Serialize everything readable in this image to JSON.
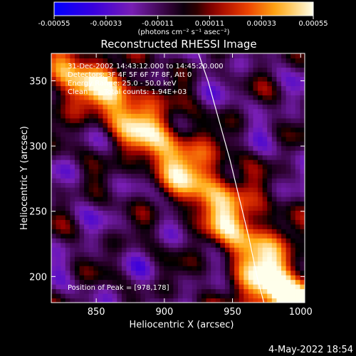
{
  "chart_data": {
    "type": "heatmap",
    "title": "Reconstructed RHESSI Image",
    "xlabel": "Heliocentric X (arcsec)",
    "ylabel": "Heliocentric Y (arcsec)",
    "xlim": [
      817,
      1003
    ],
    "ylim": [
      180,
      371
    ],
    "x_ticks": [
      850,
      900,
      950,
      1000
    ],
    "y_ticks": [
      200,
      250,
      300,
      350
    ],
    "colorbar": {
      "range": [
        -0.00055,
        0.00055
      ],
      "tick_values": [
        -0.00055,
        -0.00033,
        -0.00011,
        0.00011,
        0.00033,
        0.00055
      ],
      "tick_labels": [
        "-0.00055",
        "-0.00033",
        "-0.00011",
        "0.00011",
        "0.00033",
        "0.00055"
      ],
      "unit_label": "(photons cm⁻² s⁻¹ asec⁻²)"
    },
    "annotations": {
      "time_range": "31-Dec-2002 14:43:12.000 to 14:45:20.000",
      "detectors": "Detectors: 3F 4F 5F 6F 7F 8F, Att 0",
      "energy_range": "Energy Range: 25.0 - 50.0 keV",
      "algorithm": "Clean",
      "total_counts": "Total counts: 1.94E+03",
      "peak_position": "Position of Peak = [978,178]"
    },
    "peak": {
      "x": 978,
      "y": 178
    },
    "limb_curve": [
      [
        925,
        371
      ],
      [
        932,
        350
      ],
      [
        940,
        320
      ],
      [
        948,
        290
      ],
      [
        955,
        260
      ],
      [
        962,
        230
      ],
      [
        968,
        200
      ],
      [
        973,
        180
      ]
    ],
    "bright_ridge": [
      [
        830,
        355
      ],
      [
        860,
        340
      ],
      [
        900,
        300
      ],
      [
        930,
        270
      ],
      [
        955,
        240
      ],
      [
        985,
        195
      ],
      [
        1000,
        180
      ]
    ]
  },
  "footer": {
    "date_stamp": "4-May-2022 18:54"
  }
}
